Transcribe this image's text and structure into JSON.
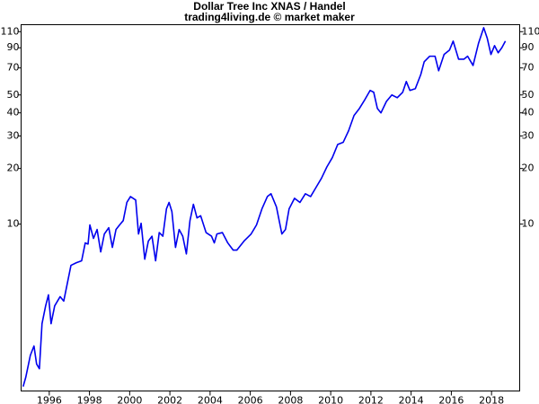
{
  "chart_data": {
    "type": "line",
    "title": "Dollar Tree Inc XNAS / Handel",
    "subtitle": "trading4living.de © market maker",
    "log_scale_y": true,
    "grid": false,
    "xlim": [
      1994.6,
      2019.4
    ],
    "xticks": [
      1996,
      1998,
      2000,
      2002,
      2004,
      2006,
      2008,
      2010,
      2012,
      2014,
      2016,
      2018
    ],
    "ylim": [
      1.25,
      120
    ],
    "yticks": [
      10,
      20,
      30,
      40,
      50,
      70,
      90,
      110
    ],
    "series": [
      {
        "color": "#0000ee",
        "x": [
          1994.7,
          1994.83,
          1995.06,
          1995.24,
          1995.37,
          1995.51,
          1995.64,
          1995.82,
          1995.96,
          1996.09,
          1996.27,
          1996.54,
          1996.72,
          1997.08,
          1997.35,
          1997.61,
          1997.79,
          1997.93,
          1998.02,
          1998.2,
          1998.38,
          1998.56,
          1998.74,
          1998.96,
          1999.14,
          1999.32,
          1999.5,
          1999.68,
          1999.86,
          2000.04,
          2000.3,
          2000.44,
          2000.57,
          2000.75,
          2000.93,
          2001.11,
          2001.29,
          2001.47,
          2001.65,
          2001.83,
          2001.96,
          2002.1,
          2002.28,
          2002.46,
          2002.64,
          2002.82,
          2003.0,
          2003.17,
          2003.35,
          2003.53,
          2003.8,
          2004.07,
          2004.21,
          2004.34,
          2004.61,
          2004.88,
          2005.15,
          2005.33,
          2005.69,
          2006.04,
          2006.31,
          2006.58,
          2006.85,
          2007.03,
          2007.3,
          2007.57,
          2007.75,
          2007.93,
          2008.2,
          2008.47,
          2008.74,
          2009.0,
          2009.27,
          2009.54,
          2009.81,
          2010.08,
          2010.35,
          2010.62,
          2010.89,
          2011.16,
          2011.43,
          2011.7,
          2011.96,
          2012.14,
          2012.32,
          2012.5,
          2012.77,
          2013.04,
          2013.31,
          2013.58,
          2013.76,
          2013.94,
          2014.21,
          2014.48,
          2014.65,
          2014.92,
          2015.19,
          2015.37,
          2015.64,
          2015.91,
          2016.09,
          2016.36,
          2016.63,
          2016.81,
          2017.08,
          2017.35,
          2017.61,
          2017.79,
          2017.97,
          2018.15,
          2018.33,
          2018.51,
          2018.69
        ],
        "values": [
          1.32,
          1.48,
          1.95,
          2.19,
          1.75,
          1.65,
          2.89,
          3.61,
          4.14,
          2.89,
          3.61,
          4.05,
          3.83,
          5.98,
          6.18,
          6.33,
          7.91,
          7.8,
          9.9,
          8.37,
          9.35,
          7.07,
          8.84,
          9.56,
          7.48,
          9.35,
          9.9,
          10.45,
          13.1,
          14.1,
          13.5,
          8.84,
          10.1,
          6.46,
          8.1,
          8.6,
          6.33,
          9.0,
          8.6,
          12.1,
          13.1,
          11.7,
          7.48,
          9.35,
          8.6,
          6.9,
          10.45,
          12.8,
          10.8,
          11.1,
          9.0,
          8.6,
          7.91,
          8.84,
          9.0,
          7.91,
          7.23,
          7.23,
          8.1,
          8.84,
          9.9,
          12.1,
          14.1,
          14.6,
          12.4,
          8.84,
          9.35,
          12.1,
          13.8,
          13.1,
          14.6,
          14.1,
          15.8,
          17.7,
          20.4,
          22.9,
          27.0,
          27.7,
          32.0,
          38.7,
          42.3,
          47.2,
          52.9,
          51.7,
          42.3,
          40.0,
          46.1,
          50.0,
          48.3,
          51.7,
          59.1,
          52.9,
          54.1,
          64.5,
          75.6,
          81.0,
          81.0,
          67.6,
          82.8,
          87.5,
          97.8,
          78.1,
          78.1,
          81.0,
          72.2,
          95.0,
          115.6,
          101.0,
          82.8,
          92.4,
          84.6,
          90.0,
          97.8
        ]
      }
    ]
  }
}
